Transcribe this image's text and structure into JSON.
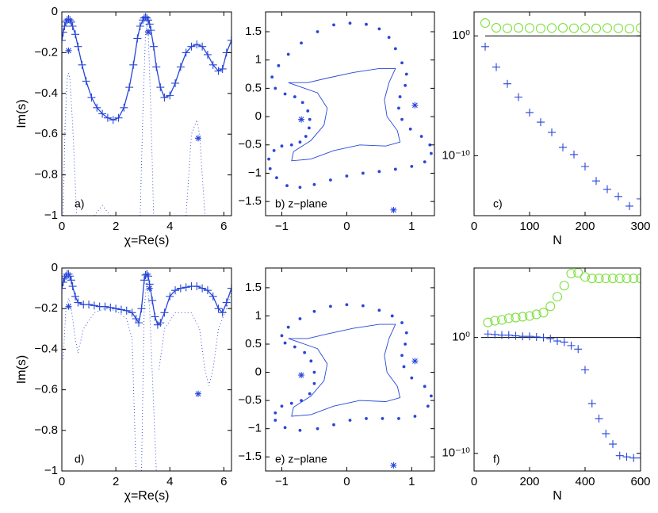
{
  "chart_data": [
    {
      "type": "line",
      "panel_label": "a)",
      "x_label": "χ=Re(s)",
      "y_label": "Im(s)",
      "xlim": [
        0,
        6.2832
      ],
      "ylim": [
        -1,
        0
      ],
      "xticks": [
        0,
        2,
        4,
        6
      ],
      "yticks": [
        0,
        {
          "value": -0.2,
          "label": "−0.2"
        },
        {
          "value": -0.4,
          "label": "−0.4"
        },
        {
          "value": -0.6,
          "label": "−0.6"
        },
        {
          "value": -0.8,
          "label": "−0.8"
        },
        {
          "value": -1,
          "label": "−1"
        }
      ],
      "series": [
        {
          "color": "#2846d8",
          "line": "solid",
          "marker": "plus",
          "x": [
            0,
            0.05,
            0.1,
            0.15,
            0.2,
            0.25,
            0.3,
            0.35,
            0.4,
            0.5,
            0.6,
            0.75,
            0.9,
            1.1,
            1.3,
            1.5,
            1.7,
            1.9,
            2.1,
            2.3,
            2.5,
            2.65,
            2.8,
            2.9,
            3.0,
            3.05,
            3.1,
            3.15,
            3.2,
            3.25,
            3.3,
            3.4,
            3.5,
            3.65,
            3.8,
            4.0,
            4.2,
            4.4,
            4.6,
            4.8,
            5.0,
            5.2,
            5.4,
            5.6,
            5.8,
            5.95,
            6.1,
            6.28
          ],
          "values": [
            -0.14,
            -0.1,
            -0.07,
            -0.05,
            -0.04,
            -0.035,
            -0.04,
            -0.05,
            -0.07,
            -0.11,
            -0.17,
            -0.26,
            -0.34,
            -0.42,
            -0.47,
            -0.5,
            -0.52,
            -0.53,
            -0.52,
            -0.47,
            -0.37,
            -0.26,
            -0.13,
            -0.07,
            -0.04,
            -0.03,
            -0.025,
            -0.03,
            -0.04,
            -0.06,
            -0.09,
            -0.17,
            -0.27,
            -0.37,
            -0.42,
            -0.41,
            -0.35,
            -0.27,
            -0.2,
            -0.17,
            -0.16,
            -0.17,
            -0.21,
            -0.26,
            -0.29,
            -0.28,
            -0.2,
            -0.14
          ]
        },
        {
          "color": "#2846d8",
          "line": "dotted",
          "marker": null,
          "x": [
            0.05,
            0.12,
            0.2,
            0.25,
            0.3,
            0.4,
            0.55,
            1.0,
            1.2,
            1.5,
            1.8,
            2.4,
            2.9,
            3.0,
            3.1,
            3.15,
            3.2,
            3.3,
            3.4,
            4.3,
            4.6,
            4.8,
            5.0,
            5.1,
            5.3
          ],
          "values": [
            -1,
            -0.55,
            -0.33,
            -0.3,
            -0.33,
            -0.55,
            -1,
            null,
            -1,
            -0.95,
            -1,
            null,
            -1,
            -0.5,
            -0.1,
            -0.06,
            -0.1,
            -0.5,
            -1,
            null,
            -1,
            -0.6,
            -0.53,
            -0.6,
            -1
          ]
        },
        {
          "color": "#2846d8",
          "line": null,
          "marker": "star",
          "x": [
            0.25,
            3.2,
            5.05
          ],
          "values": [
            -0.19,
            -0.1,
            -0.62
          ]
        }
      ]
    },
    {
      "type": "scatter",
      "panel_label": "b) z−plane",
      "xlim": [
        -1.25,
        1.35
      ],
      "ylim": [
        -1.75,
        1.85
      ],
      "xticks": [
        {
          "value": -1,
          "label": "−1"
        },
        0,
        1
      ],
      "yticks": [
        {
          "value": -1.5,
          "label": "−1.5"
        },
        {
          "value": -1,
          "label": "−1"
        },
        {
          "value": -0.5,
          "label": "−0.5"
        },
        0,
        0.5,
        1,
        1.5
      ],
      "series": [
        {
          "color": "#2846d8",
          "line": null,
          "marker": "dot",
          "x": [
            0.5,
            0.3,
            0.05,
            -0.2,
            -0.45,
            -0.7,
            -0.9,
            -1.05,
            -1.15,
            -1.1,
            -0.95,
            -0.8,
            -0.68,
            -0.6,
            -0.57,
            -0.58,
            -0.63,
            -0.72,
            -0.85,
            -1.0,
            -1.12,
            -1.2,
            -1.18,
            -1.08,
            -0.92,
            -0.72,
            -0.5,
            -0.25,
            0.0,
            0.25,
            0.5,
            0.75,
            1.0,
            1.2,
            1.3,
            1.28,
            1.15,
            0.98,
            0.85,
            0.8,
            0.82,
            0.9,
            0.92,
            0.85,
            0.75,
            0.65
          ],
          "values": [
            1.55,
            1.63,
            1.65,
            1.62,
            1.5,
            1.3,
            1.1,
            0.9,
            0.7,
            0.5,
            0.4,
            0.35,
            0.25,
            0.1,
            -0.05,
            -0.2,
            -0.35,
            -0.45,
            -0.5,
            -0.52,
            -0.6,
            -0.75,
            -0.92,
            -1.08,
            -1.22,
            -1.25,
            -1.2,
            -1.12,
            -1.05,
            -1.0,
            -0.97,
            -0.93,
            -0.88,
            -0.8,
            -0.65,
            -0.5,
            -0.35,
            -0.22,
            -0.05,
            0.15,
            0.35,
            0.55,
            0.75,
            0.95,
            1.2,
            1.4
          ]
        },
        {
          "color": "#2846d8",
          "line": "thin",
          "marker": null,
          "x": [
            -0.9,
            -0.6,
            -0.3,
            0.1,
            0.5,
            0.75,
            0.65,
            0.58,
            0.62,
            0.78,
            0.82,
            0.6,
            0.2,
            -0.2,
            -0.55,
            -0.85,
            -0.82,
            -0.55,
            -0.35,
            -0.3,
            -0.45,
            -0.9
          ],
          "values": [
            0.6,
            0.6,
            0.68,
            0.78,
            0.85,
            0.85,
            0.6,
            0.3,
            0.0,
            -0.25,
            -0.45,
            -0.52,
            -0.5,
            -0.6,
            -0.75,
            -0.78,
            -0.62,
            -0.42,
            -0.15,
            0.15,
            0.42,
            0.6
          ]
        },
        {
          "color": "#2846d8",
          "line": null,
          "marker": "star",
          "x": [
            -0.7,
            1.05,
            0.72
          ],
          "values": [
            -0.05,
            0.2,
            -1.65
          ]
        }
      ]
    },
    {
      "type": "scatter",
      "panel_label": "c)",
      "x_label": "N",
      "yscale": "log",
      "xlim": [
        0,
        300
      ],
      "ylim": [
        1e-15,
        100
      ],
      "xticks": [
        0,
        100,
        200,
        300
      ],
      "yticks": [
        {
          "value": 1,
          "label": "10⁰"
        },
        {
          "value": 1e-10,
          "label": "10⁻¹⁰"
        }
      ],
      "reference_line": {
        "y": 1,
        "x": [
          20,
          300
        ],
        "color": "#000000"
      },
      "series": [
        {
          "color": "#7fe040",
          "line": null,
          "marker": "circle",
          "x": [
            20,
            40,
            60,
            80,
            100,
            120,
            140,
            160,
            180,
            200,
            220,
            240,
            260,
            280,
            300
          ],
          "values": [
            11.8,
            4.7,
            4.3,
            4.7,
            4.5,
            4.2,
            4.5,
            4.7,
            4.3,
            4.5,
            4.2,
            4.5,
            4.3,
            4.0,
            4.5
          ]
        },
        {
          "color": "#2846d8",
          "line": null,
          "marker": "plus",
          "x": [
            20,
            40,
            60,
            80,
            100,
            120,
            140,
            160,
            180,
            200,
            220,
            240,
            260,
            280,
            300
          ],
          "values": [
            0.126,
            0.0025,
            0.0001,
            7.9e-06,
            4e-07,
            6.3e-08,
            8.9e-09,
            5e-10,
            1.26e-10,
            1.26e-11,
            7.9e-13,
            1.6e-13,
            4e-14,
            6.3e-15,
            2.5e-14
          ]
        }
      ]
    },
    {
      "type": "line",
      "panel_label": "d)",
      "x_label": "χ=Re(s)",
      "y_label": "Im(s)",
      "xlim": [
        0,
        6.2832
      ],
      "ylim": [
        -1,
        0
      ],
      "xticks": [
        0,
        2,
        4,
        6
      ],
      "yticks": [
        0,
        {
          "value": -0.2,
          "label": "−0.2"
        },
        {
          "value": -0.4,
          "label": "−0.4"
        },
        {
          "value": -0.6,
          "label": "−0.6"
        },
        {
          "value": -0.8,
          "label": "−0.8"
        },
        {
          "value": -1,
          "label": "−1"
        }
      ],
      "series": [
        {
          "color": "#2846d8",
          "line": "solid",
          "marker": "plus",
          "x": [
            0,
            0.05,
            0.1,
            0.15,
            0.2,
            0.25,
            0.3,
            0.35,
            0.4,
            0.5,
            0.6,
            0.8,
            1.0,
            1.2,
            1.4,
            1.6,
            1.8,
            2.0,
            2.2,
            2.4,
            2.6,
            2.75,
            2.85,
            2.95,
            3.05,
            3.1,
            3.15,
            3.2,
            3.25,
            3.35,
            3.45,
            3.55,
            3.65,
            3.8,
            4.0,
            4.2,
            4.4,
            4.6,
            4.8,
            5.0,
            5.2,
            5.4,
            5.6,
            5.8,
            5.95,
            6.1,
            6.28
          ],
          "values": [
            -0.1,
            -0.07,
            -0.05,
            -0.04,
            -0.03,
            -0.03,
            -0.04,
            -0.06,
            -0.09,
            -0.14,
            -0.17,
            -0.18,
            -0.18,
            -0.185,
            -0.19,
            -0.19,
            -0.195,
            -0.2,
            -0.205,
            -0.21,
            -0.22,
            -0.25,
            -0.27,
            -0.2,
            -0.06,
            -0.035,
            -0.03,
            -0.04,
            -0.08,
            -0.16,
            -0.24,
            -0.28,
            -0.27,
            -0.22,
            -0.14,
            -0.11,
            -0.1,
            -0.095,
            -0.09,
            -0.09,
            -0.1,
            -0.11,
            -0.14,
            -0.2,
            -0.22,
            -0.17,
            -0.1
          ]
        },
        {
          "color": "#2846d8",
          "line": "dotted",
          "marker": null,
          "x": [
            0.05,
            0.15,
            0.25,
            0.35,
            0.5,
            0.6,
            0.8,
            1.2,
            1.6,
            2.0,
            2.4,
            2.6,
            2.75,
            2.85,
            2.95,
            3.05,
            3.15,
            3.25,
            3.5,
            3.55,
            3.6,
            3.8,
            4.2,
            4.8,
            5.1,
            5.3,
            5.45,
            5.6,
            5.8,
            6.1,
            6.28
          ],
          "values": [
            -0.45,
            -0.2,
            -0.15,
            -0.2,
            -0.35,
            -0.42,
            -0.3,
            -0.22,
            -0.2,
            -0.21,
            -0.25,
            -0.35,
            -1,
            null,
            -1,
            -0.2,
            -0.06,
            -0.2,
            -1,
            null,
            -0.5,
            -0.3,
            -0.22,
            -0.22,
            -0.3,
            -0.5,
            -0.58,
            -0.5,
            -0.3,
            -0.2,
            -0.12
          ]
        },
        {
          "color": "#2846d8",
          "line": null,
          "marker": "star",
          "x": [
            0.25,
            3.25,
            5.05
          ],
          "values": [
            -0.19,
            -0.1,
            -0.62
          ]
        }
      ]
    },
    {
      "type": "scatter",
      "panel_label": "e) z−plane",
      "xlim": [
        -1.25,
        1.35
      ],
      "ylim": [
        -1.75,
        1.85
      ],
      "xticks": [
        {
          "value": -1,
          "label": "−1"
        },
        0,
        1
      ],
      "yticks": [
        {
          "value": -1.5,
          "label": "−1.5"
        },
        {
          "value": -1,
          "label": "−1"
        },
        {
          "value": -0.5,
          "label": "−0.5"
        },
        0,
        0.5,
        1,
        1.5
      ],
      "series": [
        {
          "color": "#2846d8",
          "line": null,
          "marker": "dot",
          "x": [
            0.5,
            0.25,
            0,
            -0.25,
            -0.5,
            -0.72,
            -0.9,
            -1.0,
            -0.95,
            -0.8,
            -0.65,
            -0.55,
            -0.5,
            -0.5,
            -0.57,
            -0.7,
            -0.85,
            -1.0,
            -1.1,
            -1.1,
            -0.95,
            -0.72,
            -0.45,
            -0.2,
            0.05,
            0.3,
            0.55,
            0.8,
            1.05,
            1.25,
            1.3,
            1.2,
            1.0,
            0.88,
            0.85,
            0.9,
            0.92,
            0.85,
            0.7
          ],
          "values": [
            1.1,
            1.18,
            1.2,
            1.17,
            1.08,
            0.95,
            0.8,
            0.65,
            0.52,
            0.45,
            0.35,
            0.2,
            0.0,
            -0.2,
            -0.38,
            -0.5,
            -0.55,
            -0.6,
            -0.72,
            -0.85,
            -0.98,
            -1.03,
            -1.0,
            -0.93,
            -0.85,
            -0.82,
            -0.82,
            -0.82,
            -0.78,
            -0.6,
            -0.42,
            -0.25,
            -0.1,
            0.1,
            0.3,
            0.5,
            0.7,
            0.88,
            1.0
          ]
        },
        {
          "color": "#2846d8",
          "line": "thin",
          "marker": null,
          "x": [
            -0.9,
            -0.6,
            -0.3,
            0.1,
            0.5,
            0.75,
            0.65,
            0.58,
            0.62,
            0.78,
            0.82,
            0.6,
            0.2,
            -0.2,
            -0.55,
            -0.85,
            -0.82,
            -0.55,
            -0.35,
            -0.3,
            -0.45,
            -0.9
          ],
          "values": [
            0.6,
            0.6,
            0.68,
            0.78,
            0.85,
            0.85,
            0.6,
            0.3,
            0.0,
            -0.25,
            -0.45,
            -0.52,
            -0.5,
            -0.6,
            -0.75,
            -0.78,
            -0.62,
            -0.42,
            -0.15,
            0.15,
            0.42,
            0.6
          ]
        },
        {
          "color": "#2846d8",
          "line": null,
          "marker": "star",
          "x": [
            -0.7,
            1.05,
            0.72
          ],
          "values": [
            -0.05,
            0.2,
            -1.65
          ]
        }
      ]
    },
    {
      "type": "scatter",
      "panel_label": "f)",
      "x_label": "N",
      "yscale": "log",
      "xlim": [
        0,
        600
      ],
      "ylim": [
        3e-12,
        1000000
      ],
      "xticks": [
        0,
        200,
        400,
        600
      ],
      "yticks": [
        {
          "value": 1,
          "label": "10⁰"
        },
        {
          "value": 1e-10,
          "label": "10⁻¹⁰"
        }
      ],
      "reference_line": {
        "y": 1,
        "x": [
          25,
          600
        ],
        "color": "#000000"
      },
      "series": [
        {
          "color": "#7fe040",
          "line": null,
          "marker": "circle",
          "x": [
            50,
            75,
            100,
            125,
            150,
            175,
            200,
            225,
            250,
            275,
            300,
            325,
            350,
            375,
            400,
            425,
            450,
            475,
            500,
            525,
            550,
            575,
            600
          ],
          "values": [
            20,
            28,
            33,
            46,
            52,
            62,
            72,
            100,
            140,
            490,
            3300,
            30000,
            330000,
            390000,
            170000,
            126000,
            126000,
            126000,
            126000,
            126000,
            126000,
            126000,
            126000
          ]
        },
        {
          "color": "#2846d8",
          "line": null,
          "marker": "plus",
          "x": [
            50,
            75,
            100,
            125,
            150,
            175,
            200,
            225,
            250,
            275,
            300,
            325,
            350,
            375,
            400,
            425,
            450,
            475,
            500,
            525,
            550,
            575,
            600
          ],
          "values": [
            2.0,
            1.8,
            1.6,
            1.6,
            1.4,
            1.26,
            1.26,
            1.12,
            1.0,
            0.79,
            0.5,
            0.4,
            0.2,
            0.1,
            0.0016,
            2e-06,
            1e-07,
            5e-09,
            6.3e-10,
            6.3e-11,
            5e-11,
            4e-11,
            4e-11
          ]
        }
      ]
    }
  ]
}
